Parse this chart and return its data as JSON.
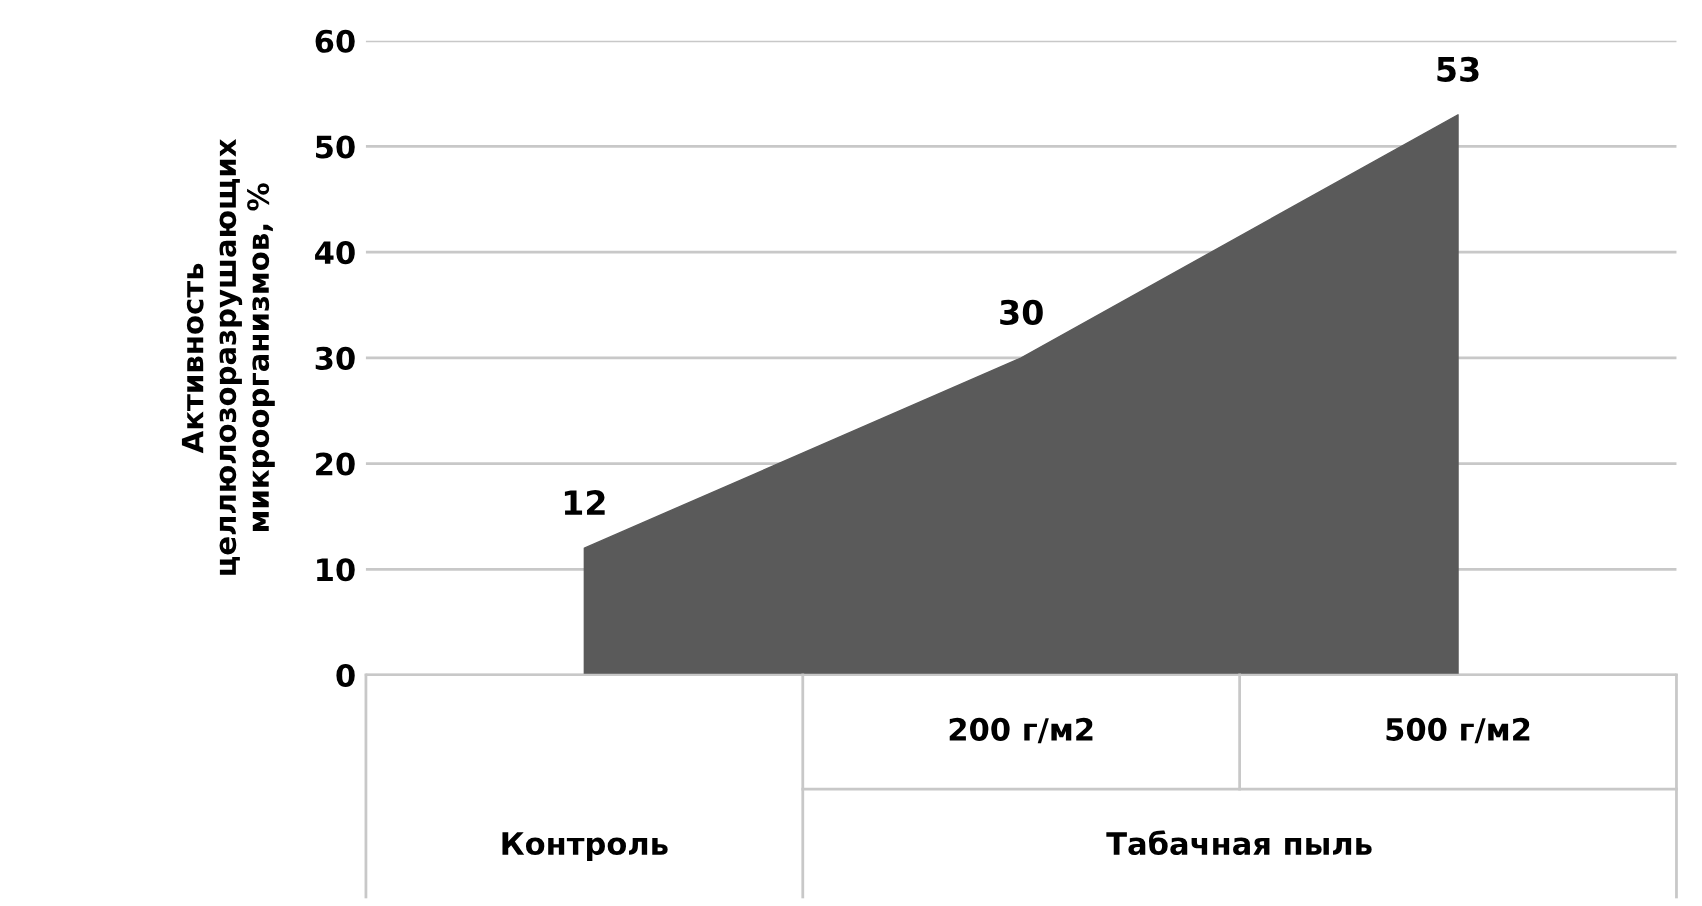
{
  "chart_data": {
    "type": "area",
    "ylabel": "Активность\nцеллюлозоразрушающих\nмикроорганизмов, %",
    "categories": [
      null,
      "200 г/м2",
      "500 г/м2"
    ],
    "values": [
      12,
      30,
      53
    ],
    "color": "#5a5a5a",
    "data_labels": true,
    "ylim": [
      0,
      60
    ],
    "yticks": [
      0,
      10,
      20,
      30,
      40,
      50,
      60
    ],
    "grid": "y",
    "annotations": [
      "Контроль",
      "Табачная пыль"
    ]
  }
}
